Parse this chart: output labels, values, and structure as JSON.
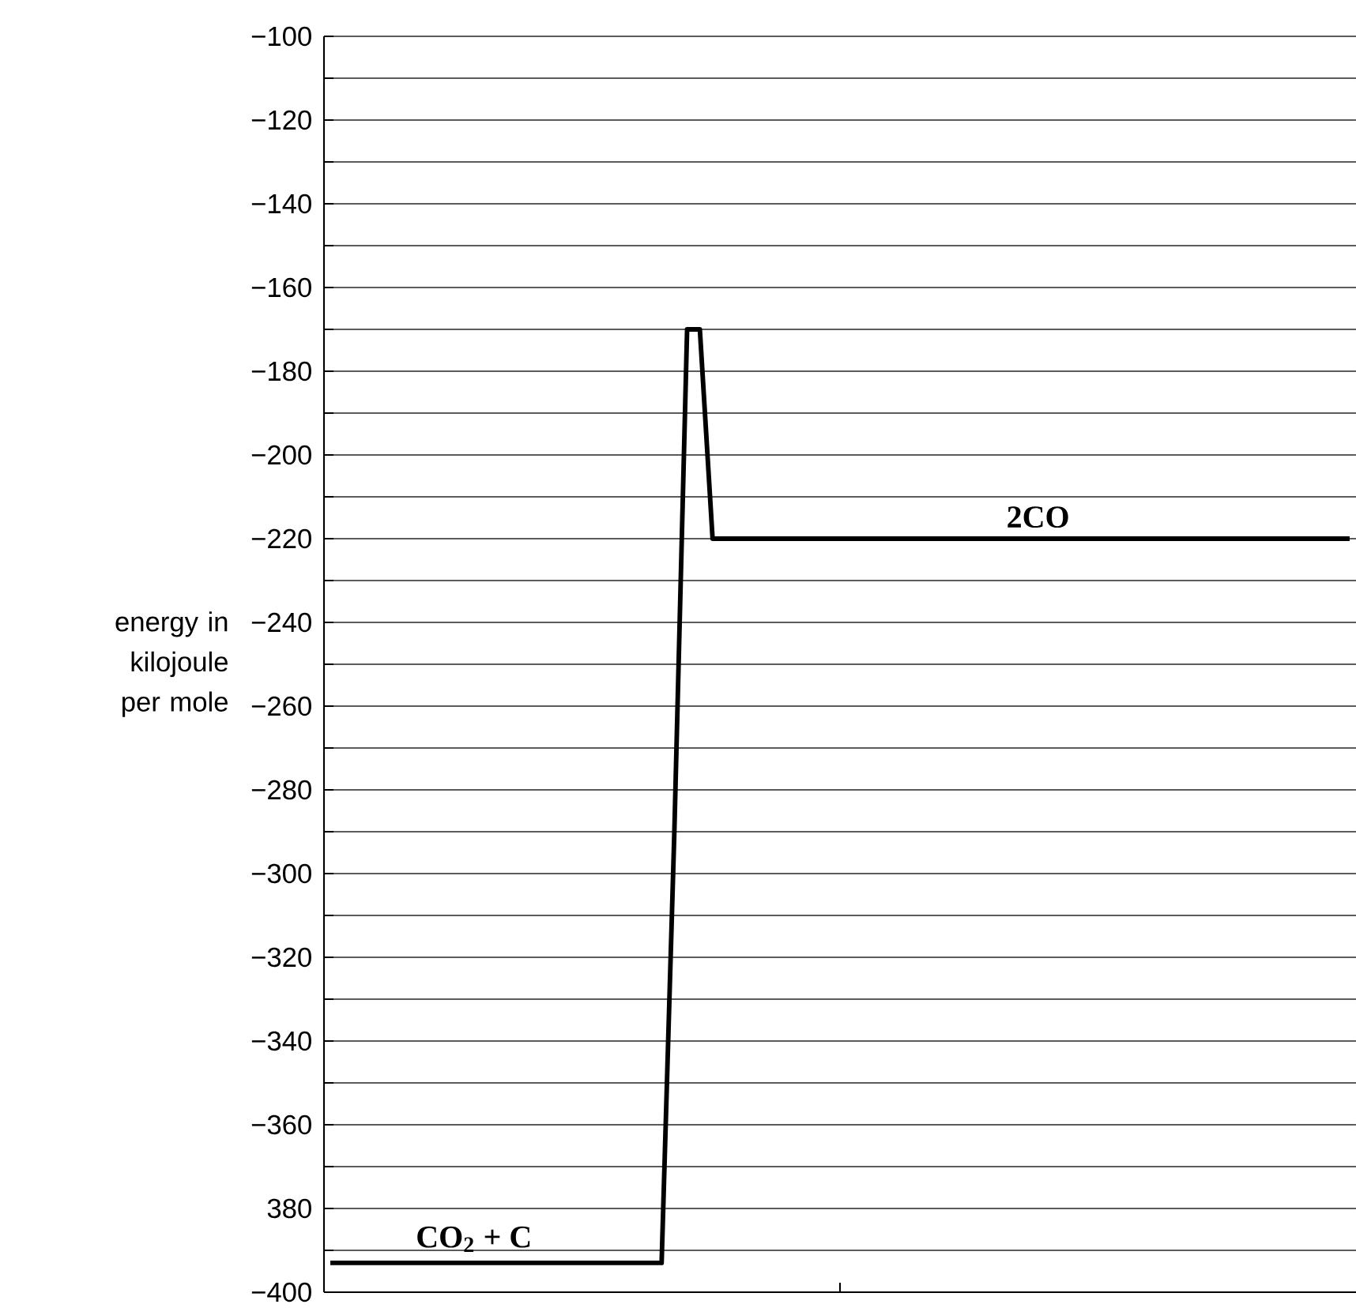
{
  "chart_data": {
    "type": "line",
    "ylabel": "energy in kilojoule per mole",
    "categories": [
      null,
      null,
      null,
      null,
      null,
      null,
      null,
      null,
      null,
      null,
      null,
      null,
      null,
      null,
      null,
      null,
      null,
      null,
      null,
      null,
      null,
      null,
      null,
      null,
      null,
      null,
      null,
      null,
      null,
      null,
      null,
      null,
      null,
      null,
      null,
      null,
      null,
      null,
      null,
      null,
      null,
      null,
      null,
      null,
      null,
      null,
      null,
      null,
      null,
      null,
      null,
      null,
      null,
      null,
      null,
      null,
      null,
      null,
      null,
      null,
      null,
      null,
      null,
      null,
      null,
      null,
      null,
      null,
      null,
      null,
      null,
      null,
      null,
      null,
      null,
      null,
      null,
      null,
      null,
      null,
      null
    ],
    "series": [
      {
        "color": "#000000",
        "values": [
          -393,
          -393,
          -393,
          -393,
          -393,
          -393,
          -393,
          -393,
          -393,
          -393,
          -393,
          -393,
          -393,
          -393,
          -393,
          -393,
          -393,
          -393,
          -393,
          -393,
          -393,
          -393,
          -393,
          -393,
          -393,
          -393,
          -393,
          -290,
          -170,
          -170,
          -220,
          -220,
          -220,
          -220,
          -220,
          -220,
          -220,
          -220,
          -220,
          -220,
          -220,
          -220,
          -220,
          -220,
          -220,
          -220,
          -220,
          -220,
          -220,
          -220,
          -220,
          -220,
          -220,
          -220,
          -220,
          -220,
          -220,
          -220,
          -220,
          -220,
          -220,
          -220,
          -220,
          -220,
          -220,
          -220,
          -220,
          -220,
          -220,
          -220,
          -220,
          -220,
          -220,
          -220,
          -220,
          -220,
          -220,
          -220,
          -220,
          -220,
          -220
        ]
      }
    ],
    "ylim": [
      -400,
      -100
    ],
    "yticks": [
      {
        "value": -100,
        "label": "−100"
      },
      {
        "value": -110,
        "label": null
      },
      {
        "value": -120,
        "label": "−120"
      },
      {
        "value": -130,
        "label": null
      },
      {
        "value": -140,
        "label": "−140"
      },
      {
        "value": -150,
        "label": null
      },
      {
        "value": -160,
        "label": "−160"
      },
      {
        "value": -170,
        "label": null
      },
      {
        "value": -180,
        "label": "−180"
      },
      {
        "value": -190,
        "label": null
      },
      {
        "value": -200,
        "label": "−200"
      },
      {
        "value": -210,
        "label": null
      },
      {
        "value": -220,
        "label": "−220"
      },
      {
        "value": -230,
        "label": null
      },
      {
        "value": -240,
        "label": "−240"
      },
      {
        "value": -250,
        "label": null
      },
      {
        "value": -260,
        "label": "−260"
      },
      {
        "value": -270,
        "label": null
      },
      {
        "value": -280,
        "label": "−280"
      },
      {
        "value": -290,
        "label": null
      },
      {
        "value": -300,
        "label": "−300"
      },
      {
        "value": -310,
        "label": null
      },
      {
        "value": -320,
        "label": "−320"
      },
      {
        "value": -330,
        "label": null
      },
      {
        "value": -340,
        "label": "−340"
      },
      {
        "value": -350,
        "label": null
      },
      {
        "value": -360,
        "label": "−360"
      },
      {
        "value": -370,
        "label": null
      },
      {
        "value": -380,
        "label": "380"
      },
      {
        "value": -390,
        "label": null
      },
      {
        "value": -400,
        "label": "−400"
      }
    ],
    "tick_labels": "y",
    "grid": "y",
    "marker": "none",
    "line_style": "solid",
    "annotations": [
      {
        "text": "CO$_{2}$ + C",
        "y": -393
      },
      {
        "text": "2CO",
        "y": -220
      }
    ]
  }
}
